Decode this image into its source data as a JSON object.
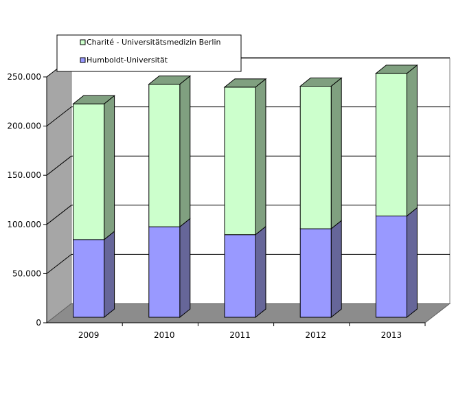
{
  "chart_data": {
    "type": "bar",
    "stacked": true,
    "three_d": true,
    "categories": [
      "2009",
      "2010",
      "2011",
      "2012",
      "2013"
    ],
    "series": [
      {
        "name": "Humboldt-Universität",
        "values": [
          79000,
          92000,
          84000,
          90000,
          103000
        ],
        "color": "#9999ff",
        "side_color": "#666699"
      },
      {
        "name": "Charité - Universitätsmedizin Berlin",
        "values": [
          138000,
          145000,
          150000,
          145000,
          145000
        ],
        "color": "#ccffcc",
        "side_color": "#80a080"
      }
    ],
    "yticks": [
      "0",
      "50.000",
      "100.000",
      "150.000",
      "200.000",
      "250.000"
    ],
    "ylim": [
      0,
      250000
    ],
    "grid": true,
    "legend_position": "top-left",
    "colors": {
      "wall": "#ffffff",
      "side_wall": "#a6a6a6",
      "floor": "#8c8c8c",
      "grid": "#000000"
    }
  }
}
